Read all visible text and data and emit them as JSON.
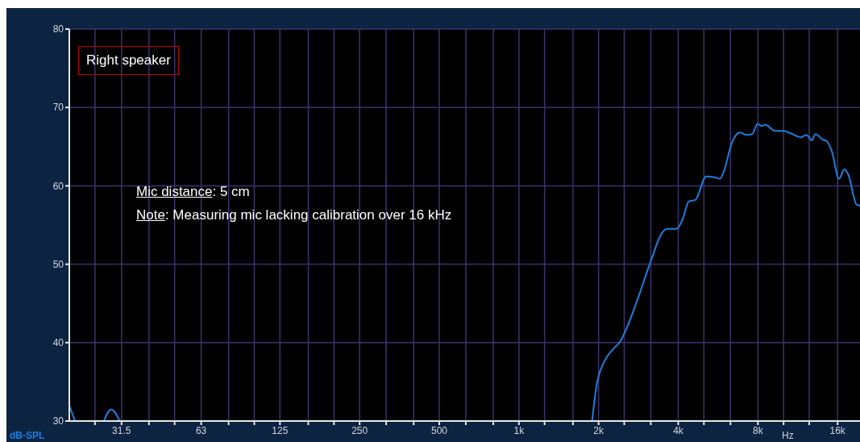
{
  "chart_data": {
    "type": "line",
    "title": "Right speaker",
    "xlabel": "Hz",
    "ylabel": "dB-SPL",
    "annotations": [
      "Mic distance: 5 cm",
      "Note: Measuring mic lacking calibration over 16 kHz"
    ],
    "log": "x",
    "grid": true,
    "marker": "none",
    "line_style": "solid",
    "xlim": [
      20,
      20000
    ],
    "xticks": [
      {
        "value": 25,
        "label": null
      },
      31.5,
      {
        "value": 40,
        "label": null
      },
      {
        "value": 50,
        "label": null
      },
      63,
      {
        "value": 80,
        "label": null
      },
      {
        "value": 100,
        "label": null
      },
      125,
      {
        "value": 160,
        "label": null
      },
      {
        "value": 200,
        "label": null
      },
      250,
      {
        "value": 315,
        "label": null
      },
      {
        "value": 400,
        "label": null
      },
      500,
      {
        "value": 630,
        "label": null
      },
      {
        "value": 800,
        "label": null
      },
      {
        "value": 1000,
        "label": "1k"
      },
      {
        "value": 1250,
        "label": null
      },
      {
        "value": 1600,
        "label": null
      },
      {
        "value": 2000,
        "label": "2k"
      },
      {
        "value": 2500,
        "label": null
      },
      {
        "value": 3150,
        "label": null
      },
      {
        "value": 4000,
        "label": "4k"
      },
      {
        "value": 5000,
        "label": null
      },
      {
        "value": 6300,
        "label": null
      },
      {
        "value": 8000,
        "label": "8k"
      },
      {
        "value": 10000,
        "label": null
      },
      {
        "value": 12500,
        "label": null
      },
      {
        "value": 16000,
        "label": "16k"
      }
    ],
    "ylim": [
      30,
      80
    ],
    "yticks": [
      30,
      40,
      50,
      60,
      70,
      80
    ],
    "series": [
      {
        "color": "#1a7fe0",
        "x": [
          20,
          21,
          24,
          27,
          28.8,
          31,
          100,
          1890,
          1960,
          2110,
          2260,
          2430,
          2600,
          2860,
          3150,
          3460,
          3620,
          3940,
          4170,
          4380,
          4640,
          5100,
          5470,
          5740,
          5940,
          6380,
          6850,
          7260,
          7610,
          7980,
          8270,
          8510,
          9300,
          9980,
          10470,
          11640,
          12200,
          12790,
          13190,
          14050,
          14560,
          15250,
          16190,
          16970,
          17580,
          18870,
          19780
        ],
        "values": [
          32.0,
          30.0,
          null,
          30.0,
          31.5,
          30.0,
          null,
          30.0,
          34.3,
          37.7,
          39.1,
          40.3,
          42.5,
          46.3,
          50.4,
          53.9,
          54.5,
          54.5,
          55.9,
          58.0,
          58.2,
          61.2,
          61.1,
          60.9,
          61.8,
          65.5,
          66.8,
          66.5,
          66.6,
          67.9,
          67.6,
          67.8,
          67.0,
          67.0,
          66.8,
          66.2,
          66.5,
          65.8,
          66.6,
          65.9,
          65.7,
          64.3,
          60.9,
          62.1,
          61.4,
          57.6,
          57.4
        ]
      }
    ]
  }
}
